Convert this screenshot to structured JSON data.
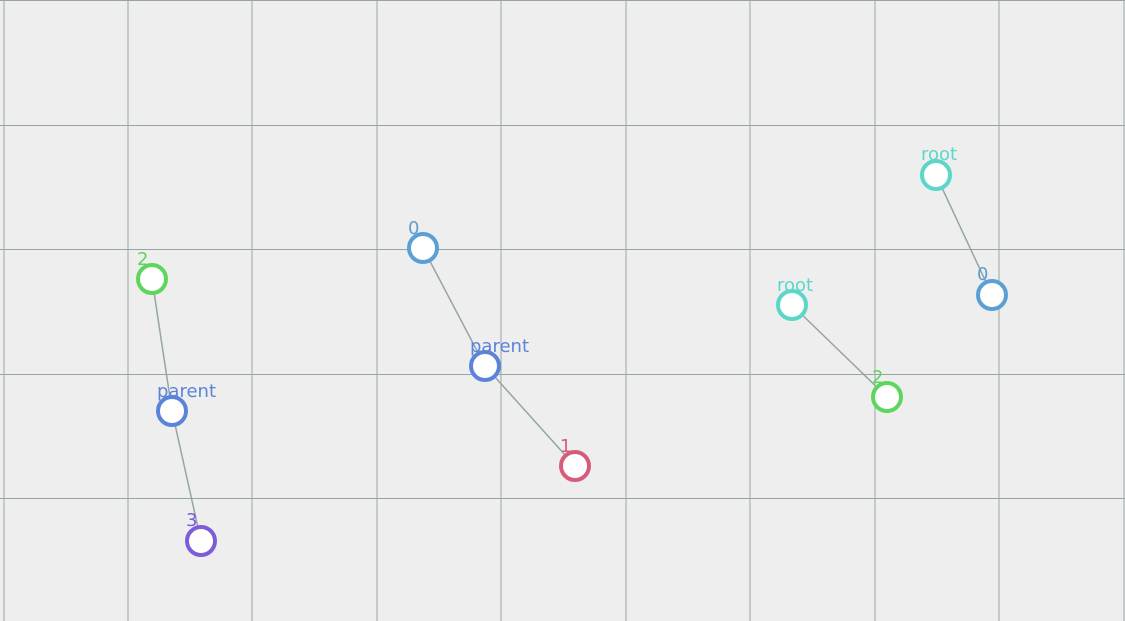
{
  "nodes": [
    {
      "id": "n_2_left",
      "label": "2",
      "color": "#5cd65c"
    },
    {
      "id": "n_parent_left",
      "label": "parent",
      "color": "#5b83d9"
    },
    {
      "id": "n_3_left",
      "label": "3",
      "color": "#7d5cd9"
    },
    {
      "id": "n_0_mid",
      "label": "0",
      "color": "#5b9fd4"
    },
    {
      "id": "n_parent_mid",
      "label": "parent",
      "color": "#5b83d9"
    },
    {
      "id": "n_1_mid",
      "label": "1",
      "color": "#d65c7a"
    },
    {
      "id": "n_root_a",
      "label": "root",
      "color": "#5cd6c8"
    },
    {
      "id": "n_2_right",
      "label": "2",
      "color": "#5cd65c"
    },
    {
      "id": "n_root_b",
      "label": "root",
      "color": "#5cd6c8"
    },
    {
      "id": "n_0_right",
      "label": "0",
      "color": "#5b9fd4"
    }
  ],
  "edges": [
    {
      "from": "n_2_left",
      "to": "n_parent_left"
    },
    {
      "from": "n_parent_left",
      "to": "n_3_left"
    },
    {
      "from": "n_0_mid",
      "to": "n_parent_mid"
    },
    {
      "from": "n_parent_mid",
      "to": "n_1_mid"
    },
    {
      "from": "n_root_a",
      "to": "n_2_right"
    },
    {
      "from": "n_root_b",
      "to": "n_0_right"
    }
  ],
  "colors": {
    "background": "#eeeeee",
    "grid": "#95a5a6",
    "edge": "#95a5a6",
    "node_fill": "#ffffff"
  }
}
